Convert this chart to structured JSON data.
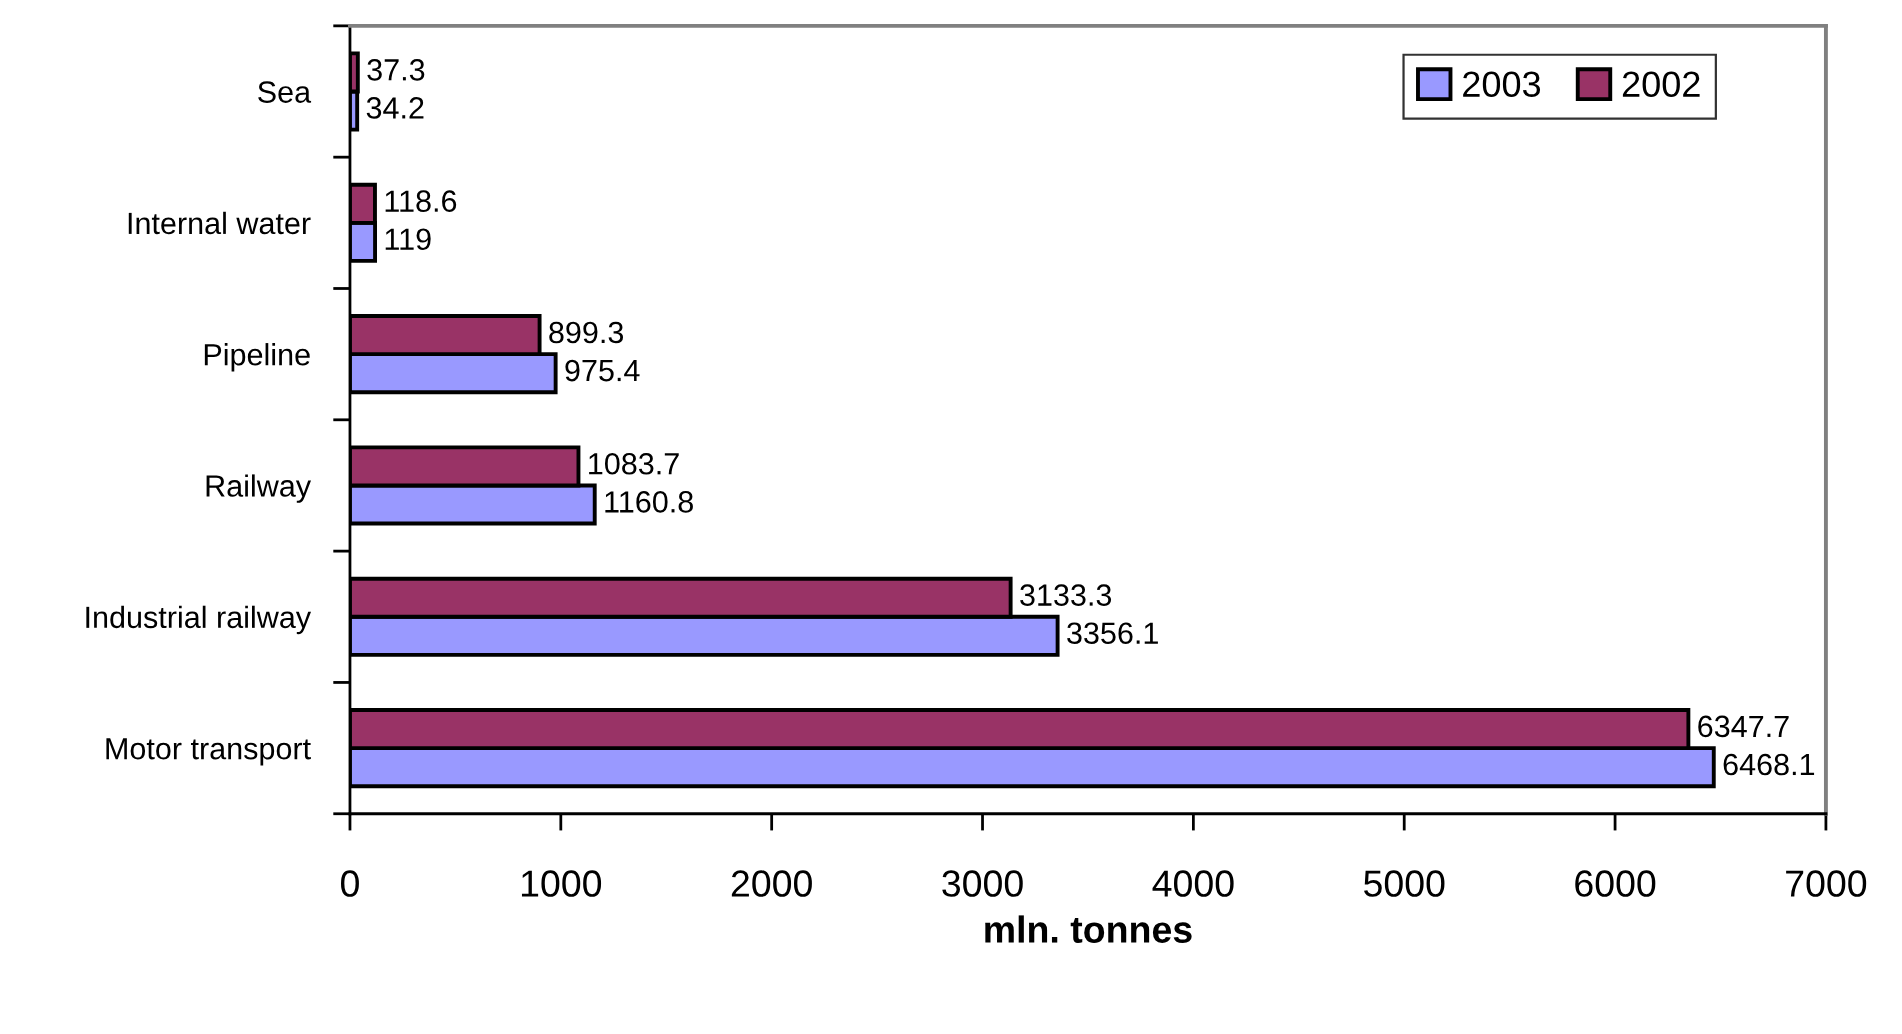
{
  "chart_data": {
    "type": "bar",
    "orientation": "horizontal",
    "xlabel": "mln. tonnes",
    "categories": [
      "Sea",
      "Internal water",
      "Pipeline",
      "Railway",
      "Industrial railway",
      "Motor transport"
    ],
    "series": [
      {
        "name": "2003",
        "color": "#9999ff",
        "values": [
          34.2,
          119,
          975.4,
          1160.8,
          3356.1,
          6468.1
        ]
      },
      {
        "name": "2002",
        "color": "#993366",
        "values": [
          37.3,
          118.6,
          899.3,
          1083.7,
          3133.3,
          6347.7
        ]
      }
    ],
    "xlim": [
      0,
      7000
    ],
    "xticks": [
      0,
      1000,
      2000,
      3000,
      4000,
      5000,
      6000,
      7000
    ],
    "data_labels": true,
    "legend": "top right",
    "grid": false
  }
}
